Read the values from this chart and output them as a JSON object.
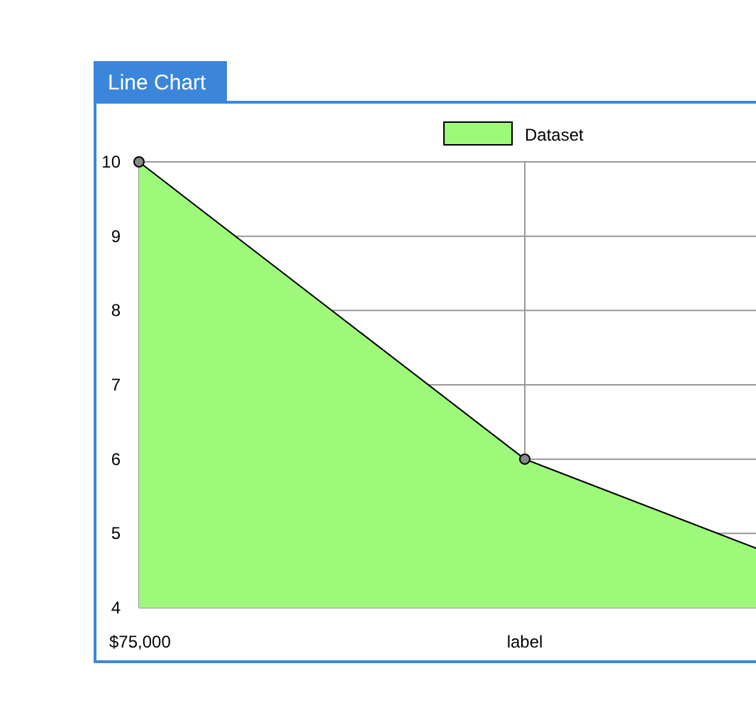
{
  "chart_data": {
    "type": "area",
    "title": "Line Chart",
    "categories": [
      "$75,000",
      "label",
      null
    ],
    "series": [
      {
        "name": "Dataset",
        "color": "#9ef97a",
        "values": [
          10,
          6,
          4
        ]
      }
    ],
    "ylim": [
      4,
      10
    ],
    "yticks": [
      4,
      5,
      6,
      7,
      8,
      9,
      10
    ],
    "grid": true,
    "legend": "top",
    "marker": "circle",
    "line_style": "solid"
  }
}
